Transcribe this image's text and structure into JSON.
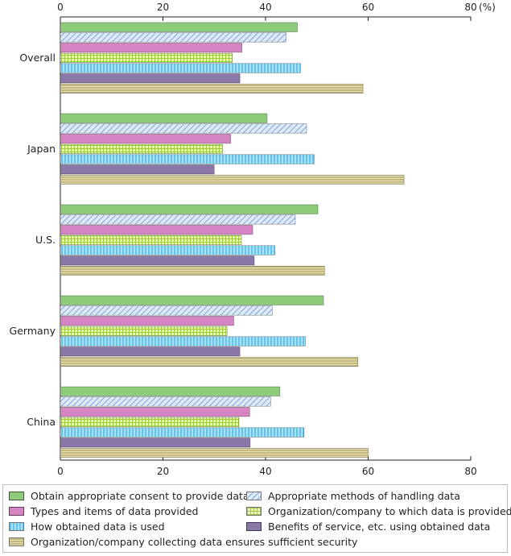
{
  "chart_data": {
    "type": "bar",
    "orientation": "horizontal",
    "unit_label": "(%)",
    "xlim": [
      0,
      80
    ],
    "xticks": [
      0,
      20,
      40,
      60,
      80
    ],
    "grid": false,
    "legend_position": "bottom",
    "categories": [
      "Overall",
      "Japan",
      "U.S.",
      "Germany",
      "China"
    ],
    "series": [
      {
        "name": "Obtain appropriate consent to provide data",
        "color": "#8ecb7a",
        "pattern": "solid",
        "values": [
          46.2,
          40.3,
          50.2,
          51.3,
          42.8
        ]
      },
      {
        "name": "Appropriate methods of handling data",
        "color": "#c9dcf2",
        "pattern": "diagonal-blue",
        "values": [
          44.0,
          48.0,
          45.8,
          41.3,
          41.0
        ]
      },
      {
        "name": "Types and items of data provided",
        "color": "#d685c3",
        "pattern": "solid",
        "values": [
          35.4,
          33.2,
          37.5,
          33.8,
          36.9
        ]
      },
      {
        "name": "Organization/company to which data is provided",
        "color": "#dcef9a",
        "pattern": "grid-green",
        "values": [
          33.5,
          31.6,
          35.3,
          32.5,
          34.8
        ]
      },
      {
        "name": "How obtained data is used",
        "color": "#7fd2f2",
        "pattern": "vertical-blue",
        "values": [
          46.8,
          49.5,
          41.8,
          47.8,
          47.5
        ]
      },
      {
        "name": "Benefits of service, etc. using obtained data",
        "color": "#8a79a8",
        "pattern": "solid",
        "values": [
          35.0,
          30.0,
          37.8,
          35.0,
          37.0
        ]
      },
      {
        "name": "Organization/company collecting data ensures sufficient security",
        "color": "#d6cb8e",
        "pattern": "horizontal-lines",
        "values": [
          59.0,
          67.0,
          51.5,
          58.0,
          60.0
        ]
      }
    ]
  }
}
